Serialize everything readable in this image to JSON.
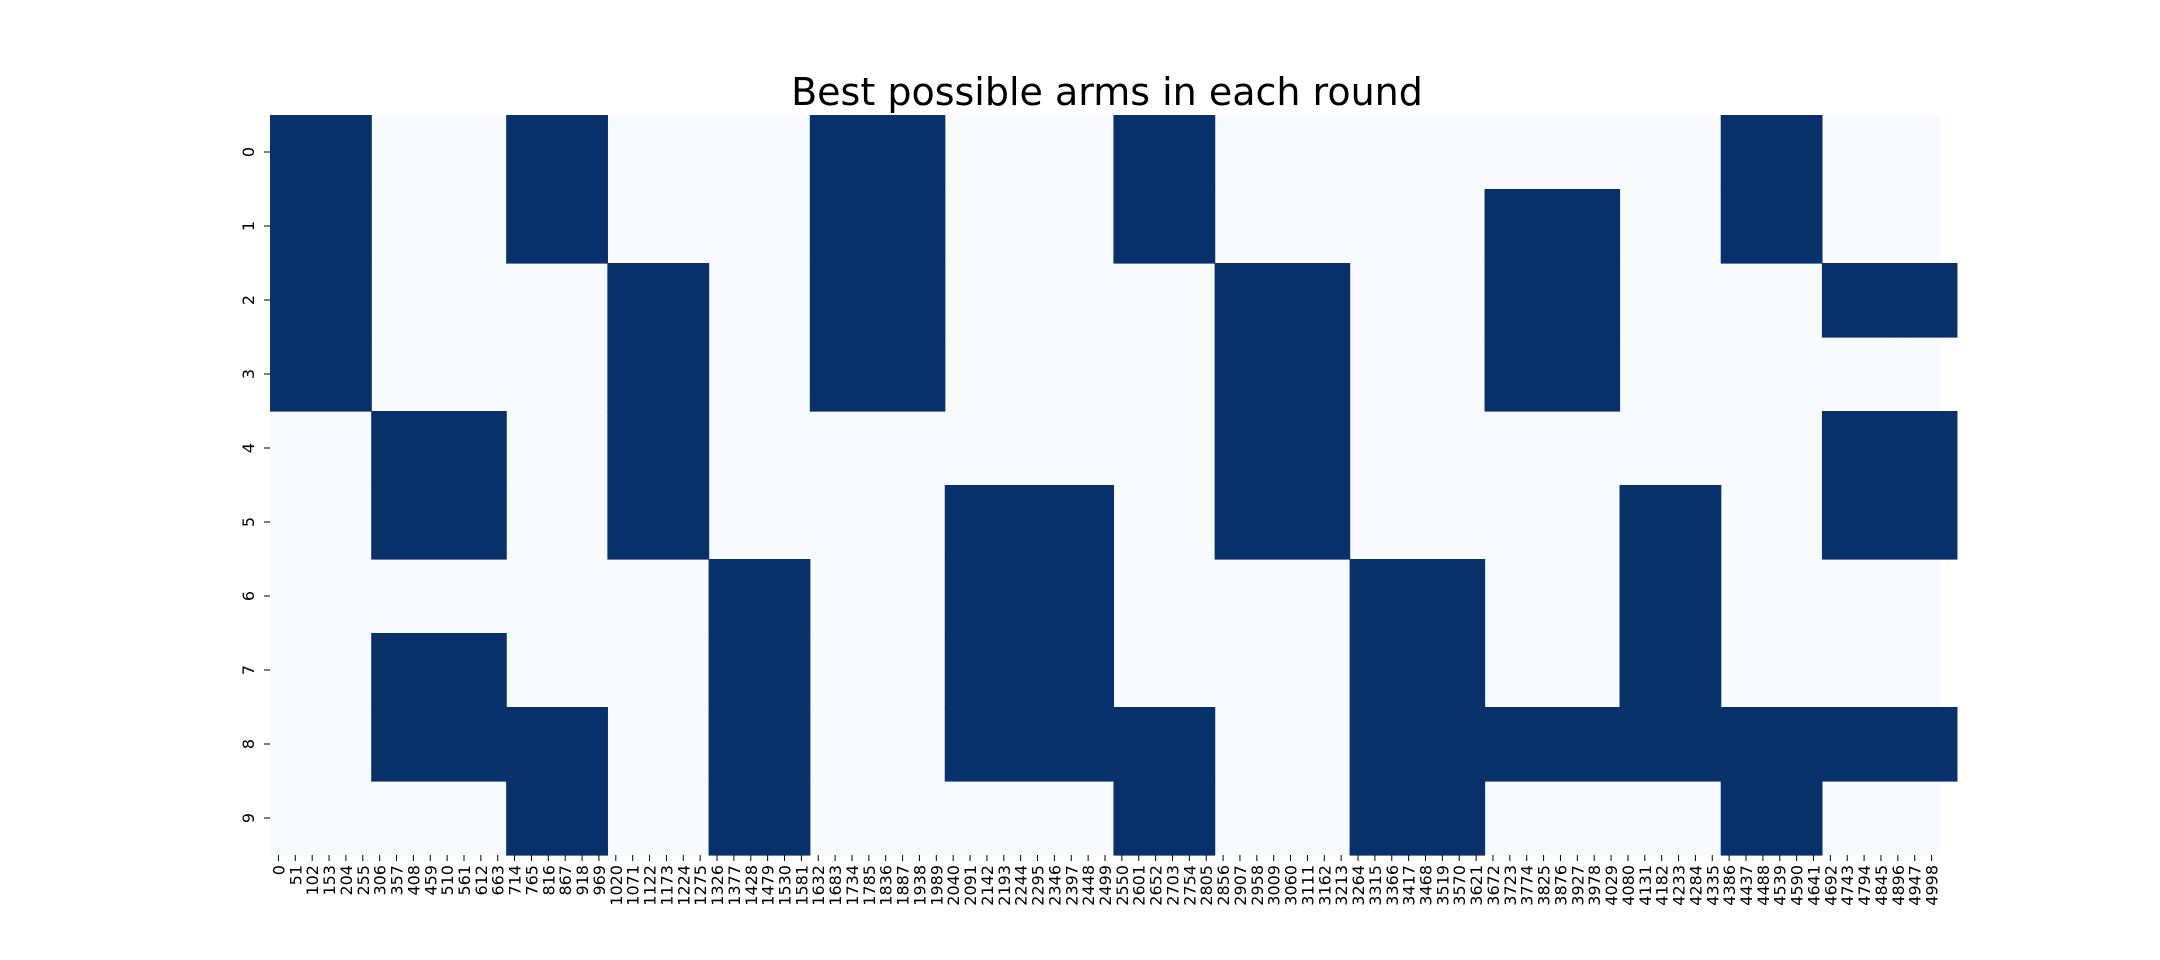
{
  "chart_data": {
    "type": "heatmap",
    "title": "Best possible arms in each round",
    "xlabel": "",
    "ylabel": "",
    "colors": {
      "low": "#f7fbff",
      "high": "#08306b"
    },
    "colorbar": false,
    "x_tick_labels": [
      "0",
      "51",
      "102",
      "153",
      "204",
      "255",
      "306",
      "357",
      "408",
      "459",
      "510",
      "561",
      "612",
      "663",
      "714",
      "765",
      "816",
      "867",
      "918",
      "969",
      "1020",
      "1071",
      "1122",
      "1173",
      "1224",
      "1275",
      "1326",
      "1377",
      "1428",
      "1479",
      "1530",
      "1581",
      "1632",
      "1683",
      "1734",
      "1785",
      "1836",
      "1887",
      "1938",
      "1989",
      "2040",
      "2091",
      "2142",
      "2193",
      "2244",
      "2295",
      "2346",
      "2397",
      "2448",
      "2499",
      "2550",
      "2601",
      "2652",
      "2703",
      "2754",
      "2805",
      "2856",
      "2907",
      "2958",
      "3009",
      "3060",
      "3111",
      "3162",
      "3213",
      "3264",
      "3315",
      "3366",
      "3417",
      "3468",
      "3519",
      "3570",
      "3621",
      "3672",
      "3723",
      "3774",
      "3825",
      "3876",
      "3927",
      "3978",
      "4029",
      "4080",
      "4131",
      "4182",
      "4233",
      "4284",
      "4335",
      "4386",
      "4437",
      "4488",
      "4539",
      "4590",
      "4641",
      "4692",
      "4743",
      "4794",
      "4845",
      "4896",
      "4947",
      "4998"
    ],
    "y_tick_labels": [
      "0",
      "1",
      "2",
      "3",
      "4",
      "5",
      "6",
      "7",
      "8",
      "9"
    ],
    "column_ranges": [
      {
        "from": 0,
        "to": 6
      },
      {
        "from": 6,
        "to": 14
      },
      {
        "from": 14,
        "to": 20
      },
      {
        "from": 20,
        "to": 26
      },
      {
        "from": 26,
        "to": 32
      },
      {
        "from": 32,
        "to": 40
      },
      {
        "from": 40,
        "to": 50
      },
      {
        "from": 50,
        "to": 56
      },
      {
        "from": 56,
        "to": 64
      },
      {
        "from": 64,
        "to": 72
      },
      {
        "from": 72,
        "to": 80
      },
      {
        "from": 80,
        "to": 86
      },
      {
        "from": 86,
        "to": 92
      },
      {
        "from": 92,
        "to": 100
      }
    ],
    "active_rows_per_range": [
      [
        0,
        1,
        2,
        3
      ],
      [
        4,
        5,
        7,
        8
      ],
      [
        0,
        1,
        8,
        9
      ],
      [
        2,
        3,
        4,
        5
      ],
      [
        6,
        7,
        8,
        9
      ],
      [
        0,
        1,
        2,
        3
      ],
      [
        5,
        6,
        7,
        8
      ],
      [
        0,
        1,
        8,
        9
      ],
      [
        2,
        3,
        4,
        5
      ],
      [
        6,
        7,
        8,
        9
      ],
      [
        1,
        2,
        3,
        8
      ],
      [
        5,
        6,
        7,
        8
      ],
      [
        0,
        1,
        8,
        9
      ],
      [
        2,
        4,
        5,
        8
      ]
    ]
  }
}
